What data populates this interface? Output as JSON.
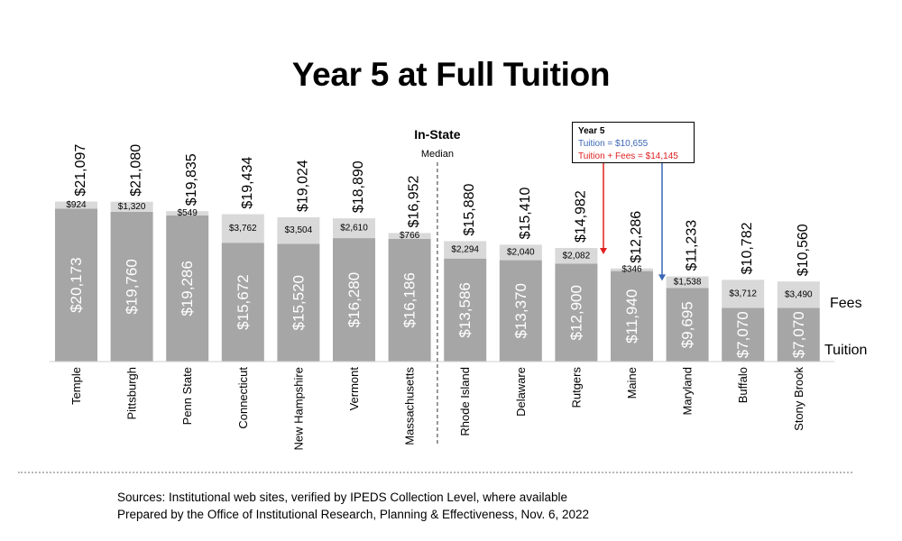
{
  "title": "Year 5 at Full Tuition",
  "median_label": "In-State",
  "median_sublabel": "Median",
  "callout": {
    "title": "Year 5",
    "tuition": "Tuition = $10,655",
    "total": "Tuition + Fees = $14,145"
  },
  "legend": {
    "fees": "Fees",
    "tuition": "Tuition"
  },
  "sources": [
    "Sources: Institutional web sites, verified by IPEDS Collection Level, where available",
    "Prepared by the Office of Institutional Research, Planning & Effectiveness, Nov. 6, 2022"
  ],
  "colors": {
    "tuition": "#a6a6a6",
    "fees": "#d9d9d9",
    "tuition_arrow": "#3a67b6",
    "total_arrow": "#e02020"
  },
  "chart_data": {
    "type": "bar",
    "stacked": true,
    "categories": [
      "Temple",
      "Pittsburgh",
      "Penn State",
      "Connecticut",
      "New Hampshire",
      "Vermont",
      "Massachusetts",
      "Rhode Island",
      "Delaware",
      "Rutgers",
      "Maine",
      "Maryland",
      "Buffalo",
      "Stony Brook"
    ],
    "series": [
      {
        "name": "Tuition",
        "values": [
          20173,
          19760,
          19286,
          15672,
          15520,
          16280,
          16186,
          13586,
          13370,
          12900,
          11940,
          9695,
          7070,
          7070
        ],
        "labels": [
          "$20,173",
          "$19,760",
          "$19,286",
          "$15,672",
          "$15,520",
          "$16,280",
          "$16,186",
          "$13,586",
          "$13,370",
          "$12,900",
          "$11,940",
          "$9,695",
          "$7,070",
          "$7,070"
        ]
      },
      {
        "name": "Fees",
        "values": [
          924,
          1320,
          549,
          3762,
          3504,
          2610,
          766,
          2294,
          2040,
          2082,
          346,
          1538,
          3712,
          3490
        ],
        "labels": [
          "$924",
          "$1,320",
          "$549",
          "$3,762",
          "$3,504",
          "$2,610",
          "$766",
          "$2,294",
          "$2,040",
          "$2,082",
          "$346",
          "$1,538",
          "$3,712",
          "$3,490"
        ]
      }
    ],
    "totals": [
      21097,
      21080,
      19835,
      19434,
      19024,
      18890,
      16952,
      15880,
      15410,
      14982,
      12286,
      11233,
      10782,
      10560
    ],
    "total_labels": [
      "$21,097",
      "$21,080",
      "$19,835",
      "$19,434",
      "$19,024",
      "$18,890",
      "$16,952",
      "$15,880",
      "$15,410",
      "$14,982",
      "$12,286",
      "$11,233",
      "$10,782",
      "$10,560"
    ],
    "median": {
      "tuition": 10655,
      "total": 14145
    },
    "ylim": [
      0,
      22500
    ],
    "grid": false,
    "legend": "right"
  }
}
